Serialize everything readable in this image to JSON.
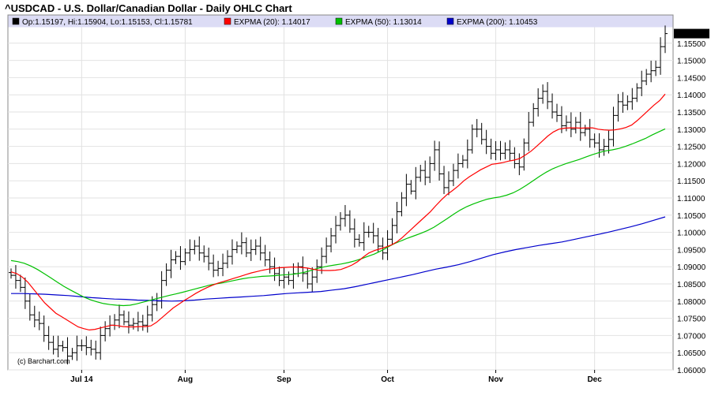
{
  "chart_data": {
    "type": "line",
    "title": "^USDCAD - U.S. Dollar/Canadian Dollar - Daily OHLC Chart",
    "legend": {
      "ohlc": "Op:1.15197, Hi:1.15904, Lo:1.15153, Cl:1.15781",
      "ema20": "EXPMA (20): 1.14017",
      "ema50": "EXPMA (50): 1.13014",
      "ema200": "EXPMA (200): 1.10453"
    },
    "last_price_label": "1.15781",
    "copyright": "(c) Barchart.com",
    "ylim": [
      1.06,
      1.16
    ],
    "y_ticks": [
      "1.06000",
      "1.06500",
      "1.07000",
      "1.07500",
      "1.08000",
      "1.08500",
      "1.09000",
      "1.09500",
      "1.10000",
      "1.10500",
      "1.11000",
      "1.11500",
      "1.12000",
      "1.12500",
      "1.13000",
      "1.13500",
      "1.14000",
      "1.14500",
      "1.15000",
      "1.15500"
    ],
    "x_labels": [
      {
        "label": "Jul 14",
        "index": 15
      },
      {
        "label": "Aug",
        "index": 37
      },
      {
        "label": "Sep",
        "index": 58
      },
      {
        "label": "Oct",
        "index": 80
      },
      {
        "label": "Nov",
        "index": 103
      },
      {
        "label": "Dec",
        "index": 124
      }
    ],
    "grid": true,
    "colors": {
      "ohlc": "#000000",
      "ema20": "#ff0000",
      "ema50": "#00c000",
      "ema200": "#0000cc",
      "legend_bg": "#dcdcf5"
    },
    "close": [
      1.0875,
      1.086,
      1.084,
      1.08,
      1.076,
      1.0745,
      1.0735,
      1.07,
      1.068,
      1.066,
      1.067,
      1.0665,
      1.064,
      1.065,
      1.067,
      1.067,
      1.0665,
      1.066,
      1.065,
      1.07,
      1.072,
      1.073,
      1.0745,
      1.076,
      1.074,
      1.073,
      1.0735,
      1.074,
      1.073,
      1.076,
      1.079,
      1.08,
      1.086,
      1.089,
      1.092,
      1.093,
      1.0915,
      1.094,
      1.095,
      1.096,
      1.094,
      1.093,
      1.091,
      1.089,
      1.0895,
      1.091,
      1.093,
      1.095,
      1.096,
      1.097,
      1.094,
      1.095,
      1.096,
      1.094,
      1.092,
      1.09,
      1.088,
      1.086,
      1.087,
      1.086,
      1.088,
      1.09,
      1.088,
      1.085,
      1.087,
      1.09,
      1.093,
      1.096,
      1.099,
      1.102,
      1.104,
      1.105,
      1.101,
      1.098,
      1.097,
      1.1,
      1.1,
      1.099,
      1.096,
      1.094,
      1.098,
      1.102,
      1.106,
      1.11,
      1.114,
      1.112,
      1.116,
      1.118,
      1.116,
      1.12,
      1.124,
      1.117,
      1.113,
      1.115,
      1.118,
      1.12,
      1.121,
      1.124,
      1.13,
      1.13,
      1.127,
      1.125,
      1.123,
      1.124,
      1.123,
      1.124,
      1.123,
      1.12,
      1.119,
      1.126,
      1.132,
      1.136,
      1.139,
      1.141,
      1.138,
      1.135,
      1.134,
      1.131,
      1.132,
      1.13,
      1.132,
      1.129,
      1.13,
      1.127,
      1.126,
      1.124,
      1.125,
      1.127,
      1.134,
      1.138,
      1.137,
      1.138,
      1.139,
      1.142,
      1.144,
      1.146,
      1.147,
      1.148,
      1.154,
      1.1578
    ],
    "ema20": [
      1.0885,
      1.088,
      1.087,
      1.0855,
      1.0835,
      1.0815,
      1.0795,
      1.078,
      1.0765,
      1.0755,
      1.0745,
      1.0735,
      1.0725,
      1.072,
      1.0716,
      1.0718,
      1.0722,
      1.0726,
      1.073,
      1.0729,
      1.0726,
      1.0725,
      1.0725,
      1.0726,
      1.0726,
      1.0728,
      1.0738,
      1.0752,
      1.0766,
      1.078,
      1.0791,
      1.0802,
      1.0812,
      1.0822,
      1.0831,
      1.0839,
      1.0846,
      1.0852,
      1.0857,
      1.0862,
      1.0867,
      1.0872,
      1.0877,
      1.0882,
      1.0886,
      1.089,
      1.0893,
      1.0895,
      1.0897,
      1.0898,
      1.0899,
      1.0899,
      1.0898,
      1.0896,
      1.0893,
      1.089,
      1.0889,
      1.0889,
      1.089,
      1.0892,
      1.0898,
      1.0905,
      1.0915,
      1.0928,
      1.094,
      1.0947,
      1.0952,
      1.0957,
      1.0963,
      1.0972,
      1.0985,
      1.1,
      1.1015,
      1.103,
      1.1045,
      1.106,
      1.1078,
      1.1095,
      1.111,
      1.1122,
      1.1135,
      1.115,
      1.1162,
      1.1172,
      1.1182,
      1.119,
      1.1198,
      1.12,
      1.1203,
      1.1207,
      1.121,
      1.1215,
      1.1225,
      1.1236,
      1.125,
      1.1265,
      1.128,
      1.1292,
      1.13,
      1.1303,
      1.1304,
      1.1304,
      1.1303,
      1.1304,
      1.1304,
      1.13,
      1.1298,
      1.1297,
      1.1298,
      1.1301,
      1.1305,
      1.1312,
      1.1325,
      1.134,
      1.1355,
      1.137,
      1.1383,
      1.1402
    ],
    "ema50": [
      1.0918,
      1.0915,
      1.091,
      1.0902,
      1.0892,
      1.088,
      1.0868,
      1.0855,
      1.0843,
      1.0832,
      1.0822,
      1.0812,
      1.0804,
      1.0798,
      1.0793,
      1.079,
      1.0788,
      1.0787,
      1.0788,
      1.0792,
      1.0797,
      1.0802,
      1.0807,
      1.0812,
      1.0817,
      1.0821,
      1.0826,
      1.0831,
      1.0836,
      1.0841,
      1.0846,
      1.085,
      1.0853,
      1.0857,
      1.0861,
      1.0865,
      1.0868,
      1.087,
      1.0872,
      1.0873,
      1.0874,
      1.0876,
      1.0877,
      1.0879,
      1.0882,
      1.0887,
      1.0893,
      1.0898,
      1.0902,
      1.0905,
      1.0908,
      1.0912,
      1.0917,
      1.0923,
      1.093,
      1.0937,
      1.0946,
      1.0957,
      1.0967,
      1.0975,
      1.0983,
      1.099,
      1.0997,
      1.1005,
      1.1015,
      1.1027,
      1.104,
      1.1053,
      1.1065,
      1.1075,
      1.1083,
      1.109,
      1.1096,
      1.11,
      1.1103,
      1.1108,
      1.1115,
      1.1125,
      1.1137,
      1.115,
      1.1163,
      1.1175,
      1.1185,
      1.1193,
      1.12,
      1.1206,
      1.1212,
      1.1219,
      1.1226,
      1.1232,
      1.1237,
      1.124,
      1.1244,
      1.125,
      1.1257,
      1.1265,
      1.1273,
      1.1283,
      1.1292,
      1.1301
    ],
    "ema200": [
      1.0822,
      1.0822,
      1.0821,
      1.082,
      1.0818,
      1.0816,
      1.0813,
      1.081,
      1.0808,
      1.0806,
      1.0805,
      1.0803,
      1.0802,
      1.0801,
      1.08,
      1.0801,
      1.0803,
      1.0806,
      1.0808,
      1.081,
      1.0812,
      1.0814,
      1.0816,
      1.0819,
      1.0822,
      1.0824,
      1.0826,
      1.0828,
      1.0832,
      1.0836,
      1.0842,
      1.0849,
      1.0856,
      1.0863,
      1.087,
      1.0877,
      1.0885,
      1.0893,
      1.0899,
      1.0906,
      1.0915,
      1.0925,
      1.0935,
      1.0943,
      1.095,
      1.0956,
      1.0962,
      1.0967,
      1.0972,
      1.0979,
      1.0986,
      1.0993,
      1.1,
      1.1008,
      1.1016,
      1.1025,
      1.1035,
      1.1045
    ]
  }
}
